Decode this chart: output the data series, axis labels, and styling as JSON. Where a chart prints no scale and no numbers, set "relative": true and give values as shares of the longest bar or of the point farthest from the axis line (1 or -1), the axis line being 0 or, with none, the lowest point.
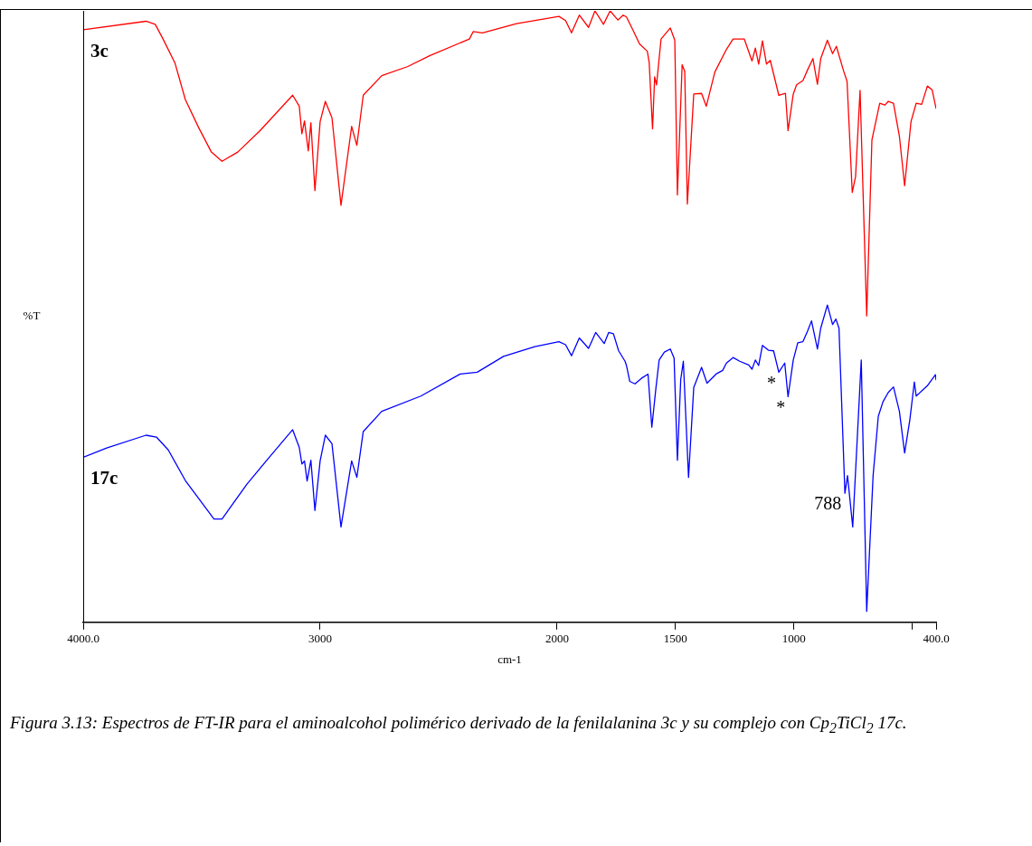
{
  "chart_data": {
    "type": "line",
    "xlabel": "cm-1",
    "ylabel": "%T",
    "relative": true,
    "tick_labels": "x",
    "xlim": [
      4000,
      400
    ],
    "xticks": [
      {
        "value": 4000,
        "label": "4000.0"
      },
      3000,
      2000,
      1500,
      1000,
      {
        "value": 500,
        "label": null
      },
      {
        "value": 400,
        "label": "400.0"
      }
    ],
    "annotations": [
      {
        "text": "788",
        "x": 788,
        "y": 0.211
      },
      {
        "text": "*",
        "x": 1064,
        "y": 0.409
      },
      {
        "text": "*",
        "x": 1025,
        "y": 0.369
      },
      "Figura 3.13: Espectros de FT-IR para el aminoalcohol polimérico derivado de la fenilalanina 3c y su complejo con Cp$_{2}$TiCl$_{2}$ 17c."
    ],
    "series": [
      {
        "name": "3c",
        "color": "#ff0000",
        "x": [
          4000,
          3735,
          3696,
          3663,
          3613,
          3569,
          3514,
          3459,
          3414,
          3348,
          3254,
          3116,
          3088,
          3077,
          3066,
          3050,
          3039,
          3022,
          3000,
          2978,
          2950,
          2912,
          2867,
          2845,
          2818,
          2740,
          2630,
          2536,
          2370,
          2354,
          2315,
          2171,
          1992,
          1964,
          1939,
          1906,
          1867,
          1840,
          1804,
          1776,
          1743,
          1721,
          1707,
          1680,
          1652,
          1619,
          1611,
          1597,
          1588,
          1580,
          1561,
          1522,
          1503,
          1492,
          1472,
          1461,
          1450,
          1423,
          1390,
          1370,
          1334,
          1285,
          1257,
          1210,
          1177,
          1163,
          1149,
          1133,
          1116,
          1100,
          1064,
          1036,
          1025,
          1003,
          989,
          962,
          942,
          920,
          901,
          887,
          859,
          837,
          821,
          790,
          776,
          754,
          740,
          721,
          693,
          671,
          638,
          616,
          602,
          580,
          555,
          533,
          506,
          484,
          461,
          437,
          417,
          400
        ],
        "values": [
          0.969,
          0.983,
          0.978,
          0.954,
          0.915,
          0.855,
          0.81,
          0.769,
          0.754,
          0.769,
          0.804,
          0.862,
          0.844,
          0.799,
          0.82,
          0.771,
          0.817,
          0.706,
          0.819,
          0.852,
          0.825,
          0.682,
          0.811,
          0.78,
          0.862,
          0.894,
          0.909,
          0.927,
          0.954,
          0.966,
          0.964,
          0.979,
          0.991,
          0.984,
          0.964,
          0.993,
          0.973,
          1,
          0.978,
          1,
          0.985,
          0.993,
          0.99,
          0.969,
          0.946,
          0.934,
          0.915,
          0.807,
          0.892,
          0.879,
          0.954,
          0.972,
          0.952,
          0.699,
          0.912,
          0.901,
          0.684,
          0.864,
          0.865,
          0.844,
          0.9,
          0.937,
          0.954,
          0.954,
          0.918,
          0.939,
          0.913,
          0.951,
          0.913,
          0.919,
          0.862,
          0.865,
          0.804,
          0.864,
          0.879,
          0.886,
          0.904,
          0.922,
          0.88,
          0.922,
          0.952,
          0.93,
          0.942,
          0.901,
          0.885,
          0.703,
          0.729,
          0.87,
          0.501,
          0.789,
          0.849,
          0.846,
          0.852,
          0.849,
          0.795,
          0.714,
          0.819,
          0.849,
          0.847,
          0.877,
          0.871,
          0.84
        ]
      },
      {
        "name": "17c",
        "color": "#0000ff",
        "x": [
          4000,
          3901,
          3735,
          3691,
          3641,
          3569,
          3448,
          3414,
          3309,
          3221,
          3116,
          3088,
          3077,
          3066,
          3055,
          3039,
          3022,
          3000,
          2978,
          2950,
          2912,
          2867,
          2845,
          2818,
          2740,
          2575,
          2409,
          2337,
          2226,
          2094,
          1992,
          1964,
          1939,
          1906,
          1867,
          1837,
          1801,
          1782,
          1762,
          1740,
          1713,
          1707,
          1693,
          1671,
          1644,
          1616,
          1600,
          1583,
          1569,
          1547,
          1522,
          1506,
          1492,
          1478,
          1467,
          1445,
          1423,
          1390,
          1367,
          1329,
          1301,
          1285,
          1257,
          1229,
          1191,
          1177,
          1163,
          1149,
          1133,
          1108,
          1086,
          1064,
          1039,
          1025,
          1003,
          984,
          962,
          942,
          926,
          901,
          887,
          859,
          837,
          823,
          810,
          785,
          774,
          752,
          716,
          693,
          666,
          644,
          624,
          602,
          580,
          555,
          533,
          511,
          492,
          484,
          437,
          403,
          400
        ],
        "values": [
          0.27,
          0.285,
          0.306,
          0.303,
          0.282,
          0.232,
          0.169,
          0.169,
          0.226,
          0.267,
          0.315,
          0.286,
          0.259,
          0.264,
          0.231,
          0.265,
          0.183,
          0.264,
          0.306,
          0.292,
          0.156,
          0.264,
          0.237,
          0.312,
          0.345,
          0.37,
          0.406,
          0.409,
          0.435,
          0.451,
          0.459,
          0.454,
          0.436,
          0.465,
          0.448,
          0.474,
          0.456,
          0.474,
          0.472,
          0.444,
          0.427,
          0.42,
          0.394,
          0.39,
          0.399,
          0.406,
          0.319,
          0.382,
          0.429,
          0.442,
          0.447,
          0.432,
          0.265,
          0.397,
          0.427,
          0.237,
          0.384,
          0.417,
          0.391,
          0.406,
          0.412,
          0.424,
          0.433,
          0.427,
          0.421,
          0.414,
          0.429,
          0.42,
          0.453,
          0.445,
          0.444,
          0.409,
          0.424,
          0.369,
          0.429,
          0.457,
          0.459,
          0.477,
          0.493,
          0.447,
          0.481,
          0.519,
          0.487,
          0.496,
          0.481,
          0.211,
          0.24,
          0.156,
          0.429,
          0.018,
          0.24,
          0.337,
          0.361,
          0.376,
          0.385,
          0.345,
          0.277,
          0.331,
          0.393,
          0.37,
          0.387,
          0.405,
          0.396
        ]
      }
    ]
  }
}
